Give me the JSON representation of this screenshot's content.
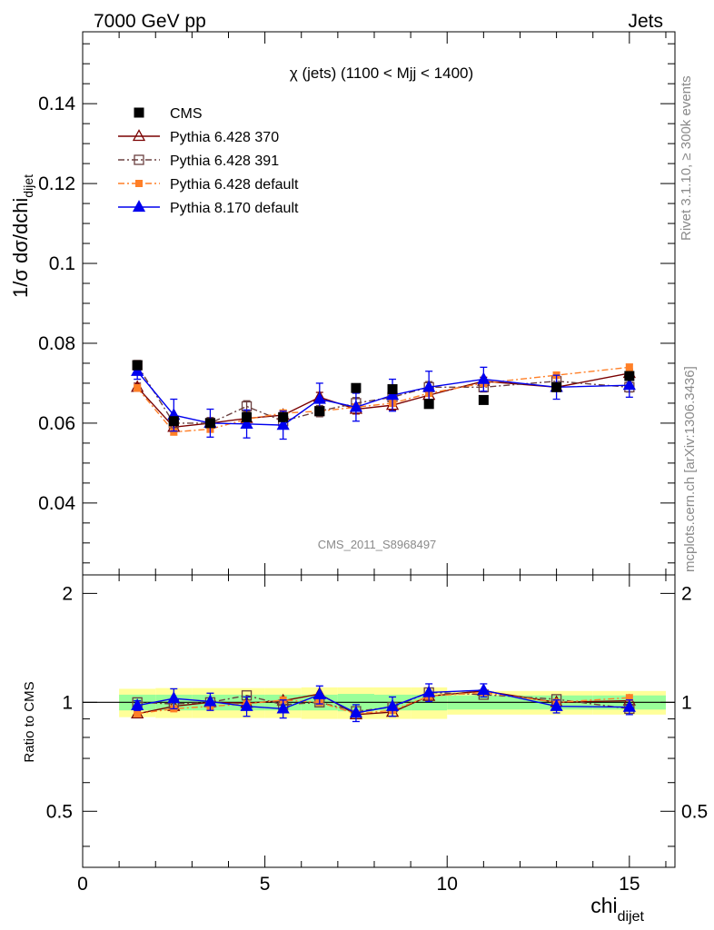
{
  "header": {
    "left": "7000 GeV pp",
    "right": "Jets"
  },
  "side_labels": {
    "rivet": "Rivet 3.1.10, ≥ 300k events",
    "mcplots": "mcplots.cern.ch [arXiv:1306.3436]"
  },
  "chart_data": {
    "type": "scatter",
    "title": "χ (jets) (1100 < Mjj < 1400)",
    "watermark": "CMS_2011_S8968497",
    "xlabel": "chi",
    "xlabel_sub": "dijet",
    "ylabel": "1/σ dσ/dchi",
    "ylabel_sub": "dijet",
    "ratio_ylabel": "Ratio to CMS",
    "xlim": [
      0,
      16.25
    ],
    "ylim": [
      0.022,
      0.158
    ],
    "ratio_ylim": [
      0.35,
      2.25
    ],
    "x_ticks": [
      0,
      5,
      10,
      15
    ],
    "x_tick_labels": [
      "0",
      "5",
      "10",
      "15"
    ],
    "y_ticks": [
      0.04,
      0.06,
      0.08,
      0.1,
      0.12,
      0.14
    ],
    "y_tick_labels": [
      "0.04",
      "0.06",
      "0.08",
      "0.1",
      "0.12",
      "0.14"
    ],
    "ratio_ticks": [
      0.5,
      1,
      2
    ],
    "ratio_tick_labels": [
      "0.5",
      "1",
      "2"
    ],
    "legend_position": "top-left",
    "x": [
      1.5,
      2.5,
      3.5,
      4.5,
      5.5,
      6.5,
      7.5,
      8.5,
      9.5,
      11.0,
      13.0,
      15.0
    ],
    "bin_edges": [
      1,
      2,
      3,
      4,
      5,
      6,
      7,
      8,
      9,
      10,
      12,
      14,
      16
    ],
    "band_inner": [
      0.05,
      0.05,
      0.05,
      0.05,
      0.05,
      0.05,
      0.055,
      0.05,
      0.05,
      0.045,
      0.045,
      0.045
    ],
    "band_outer": [
      0.09,
      0.095,
      0.095,
      0.095,
      0.095,
      0.1,
      0.1,
      0.1,
      0.1,
      0.075,
      0.075,
      0.075
    ],
    "reference": {
      "name": "CMS",
      "color": "#000000",
      "values": [
        0.0745,
        0.0605,
        0.06,
        0.0615,
        0.0615,
        0.063,
        0.0688,
        0.0685,
        0.0648,
        0.0658,
        0.069,
        0.0718
      ]
    },
    "series": [
      {
        "name": "Pythia 6.428 370",
        "color": "#7a0000",
        "marker": "triangle-open",
        "dash": "",
        "values": [
          0.069,
          0.059,
          0.06,
          0.0612,
          0.062,
          0.0665,
          0.0635,
          0.0645,
          0.067,
          0.0705,
          0.069,
          0.0725
        ],
        "errors": [
          0.001,
          0.0012,
          0.0012,
          0.0012,
          0.0012,
          0.0012,
          0.0012,
          0.0012,
          0.0012,
          0.001,
          0.001,
          0.001
        ],
        "ratio": [
          0.93,
          0.975,
          1.0,
          0.995,
          1.01,
          1.055,
          0.925,
          0.94,
          1.04,
          1.075,
          1.0,
          1.01
        ]
      },
      {
        "name": "Pythia 6.428 391",
        "color": "#6b4040",
        "marker": "square-open",
        "dash": "7,3,2,3",
        "values": [
          0.0745,
          0.06,
          0.06,
          0.0642,
          0.0605,
          0.063,
          0.065,
          0.0665,
          0.069,
          0.069,
          0.0705,
          0.069
        ],
        "errors": [
          0.0012,
          0.0014,
          0.0014,
          0.0014,
          0.0014,
          0.0014,
          0.0014,
          0.0014,
          0.0014,
          0.0012,
          0.0012,
          0.0012
        ],
        "ratio": [
          1.0,
          0.99,
          1.0,
          1.045,
          0.985,
          1.0,
          0.945,
          0.97,
          1.065,
          1.05,
          1.02,
          0.96
        ]
      },
      {
        "name": "Pythia 6.428 default",
        "color": "#ff7f27",
        "marker": "square-filled",
        "dash": "7,3,2,3",
        "values": [
          0.0688,
          0.0578,
          0.0585,
          0.061,
          0.0625,
          0.063,
          0.064,
          0.065,
          0.0675,
          0.07,
          0.072,
          0.074
        ],
        "errors": [
          0.0008,
          0.0008,
          0.0008,
          0.0008,
          0.0008,
          0.0008,
          0.0008,
          0.0008,
          0.0008,
          0.0008,
          0.0008,
          0.0008
        ],
        "ratio": [
          0.93,
          0.96,
          0.975,
          0.99,
          1.015,
          1.0,
          0.93,
          0.95,
          1.04,
          1.065,
          1.0,
          1.03
        ]
      },
      {
        "name": "Pythia 8.170 default",
        "color": "#0000ee",
        "marker": "triangle-filled",
        "dash": "",
        "values": [
          0.073,
          0.062,
          0.06,
          0.0598,
          0.0595,
          0.066,
          0.064,
          0.067,
          0.069,
          0.071,
          0.069,
          0.0695
        ],
        "errors": [
          0.002,
          0.004,
          0.0035,
          0.0035,
          0.0035,
          0.004,
          0.0035,
          0.004,
          0.004,
          0.003,
          0.003,
          0.003
        ],
        "ratio": [
          0.98,
          1.025,
          1.005,
          0.975,
          0.96,
          1.05,
          0.935,
          0.975,
          1.065,
          1.08,
          0.975,
          0.97
        ],
        "ratio_errors": [
          0.03,
          0.065,
          0.055,
          0.06,
          0.055,
          0.06,
          0.05,
          0.06,
          0.06,
          0.045,
          0.04,
          0.045
        ]
      }
    ]
  }
}
